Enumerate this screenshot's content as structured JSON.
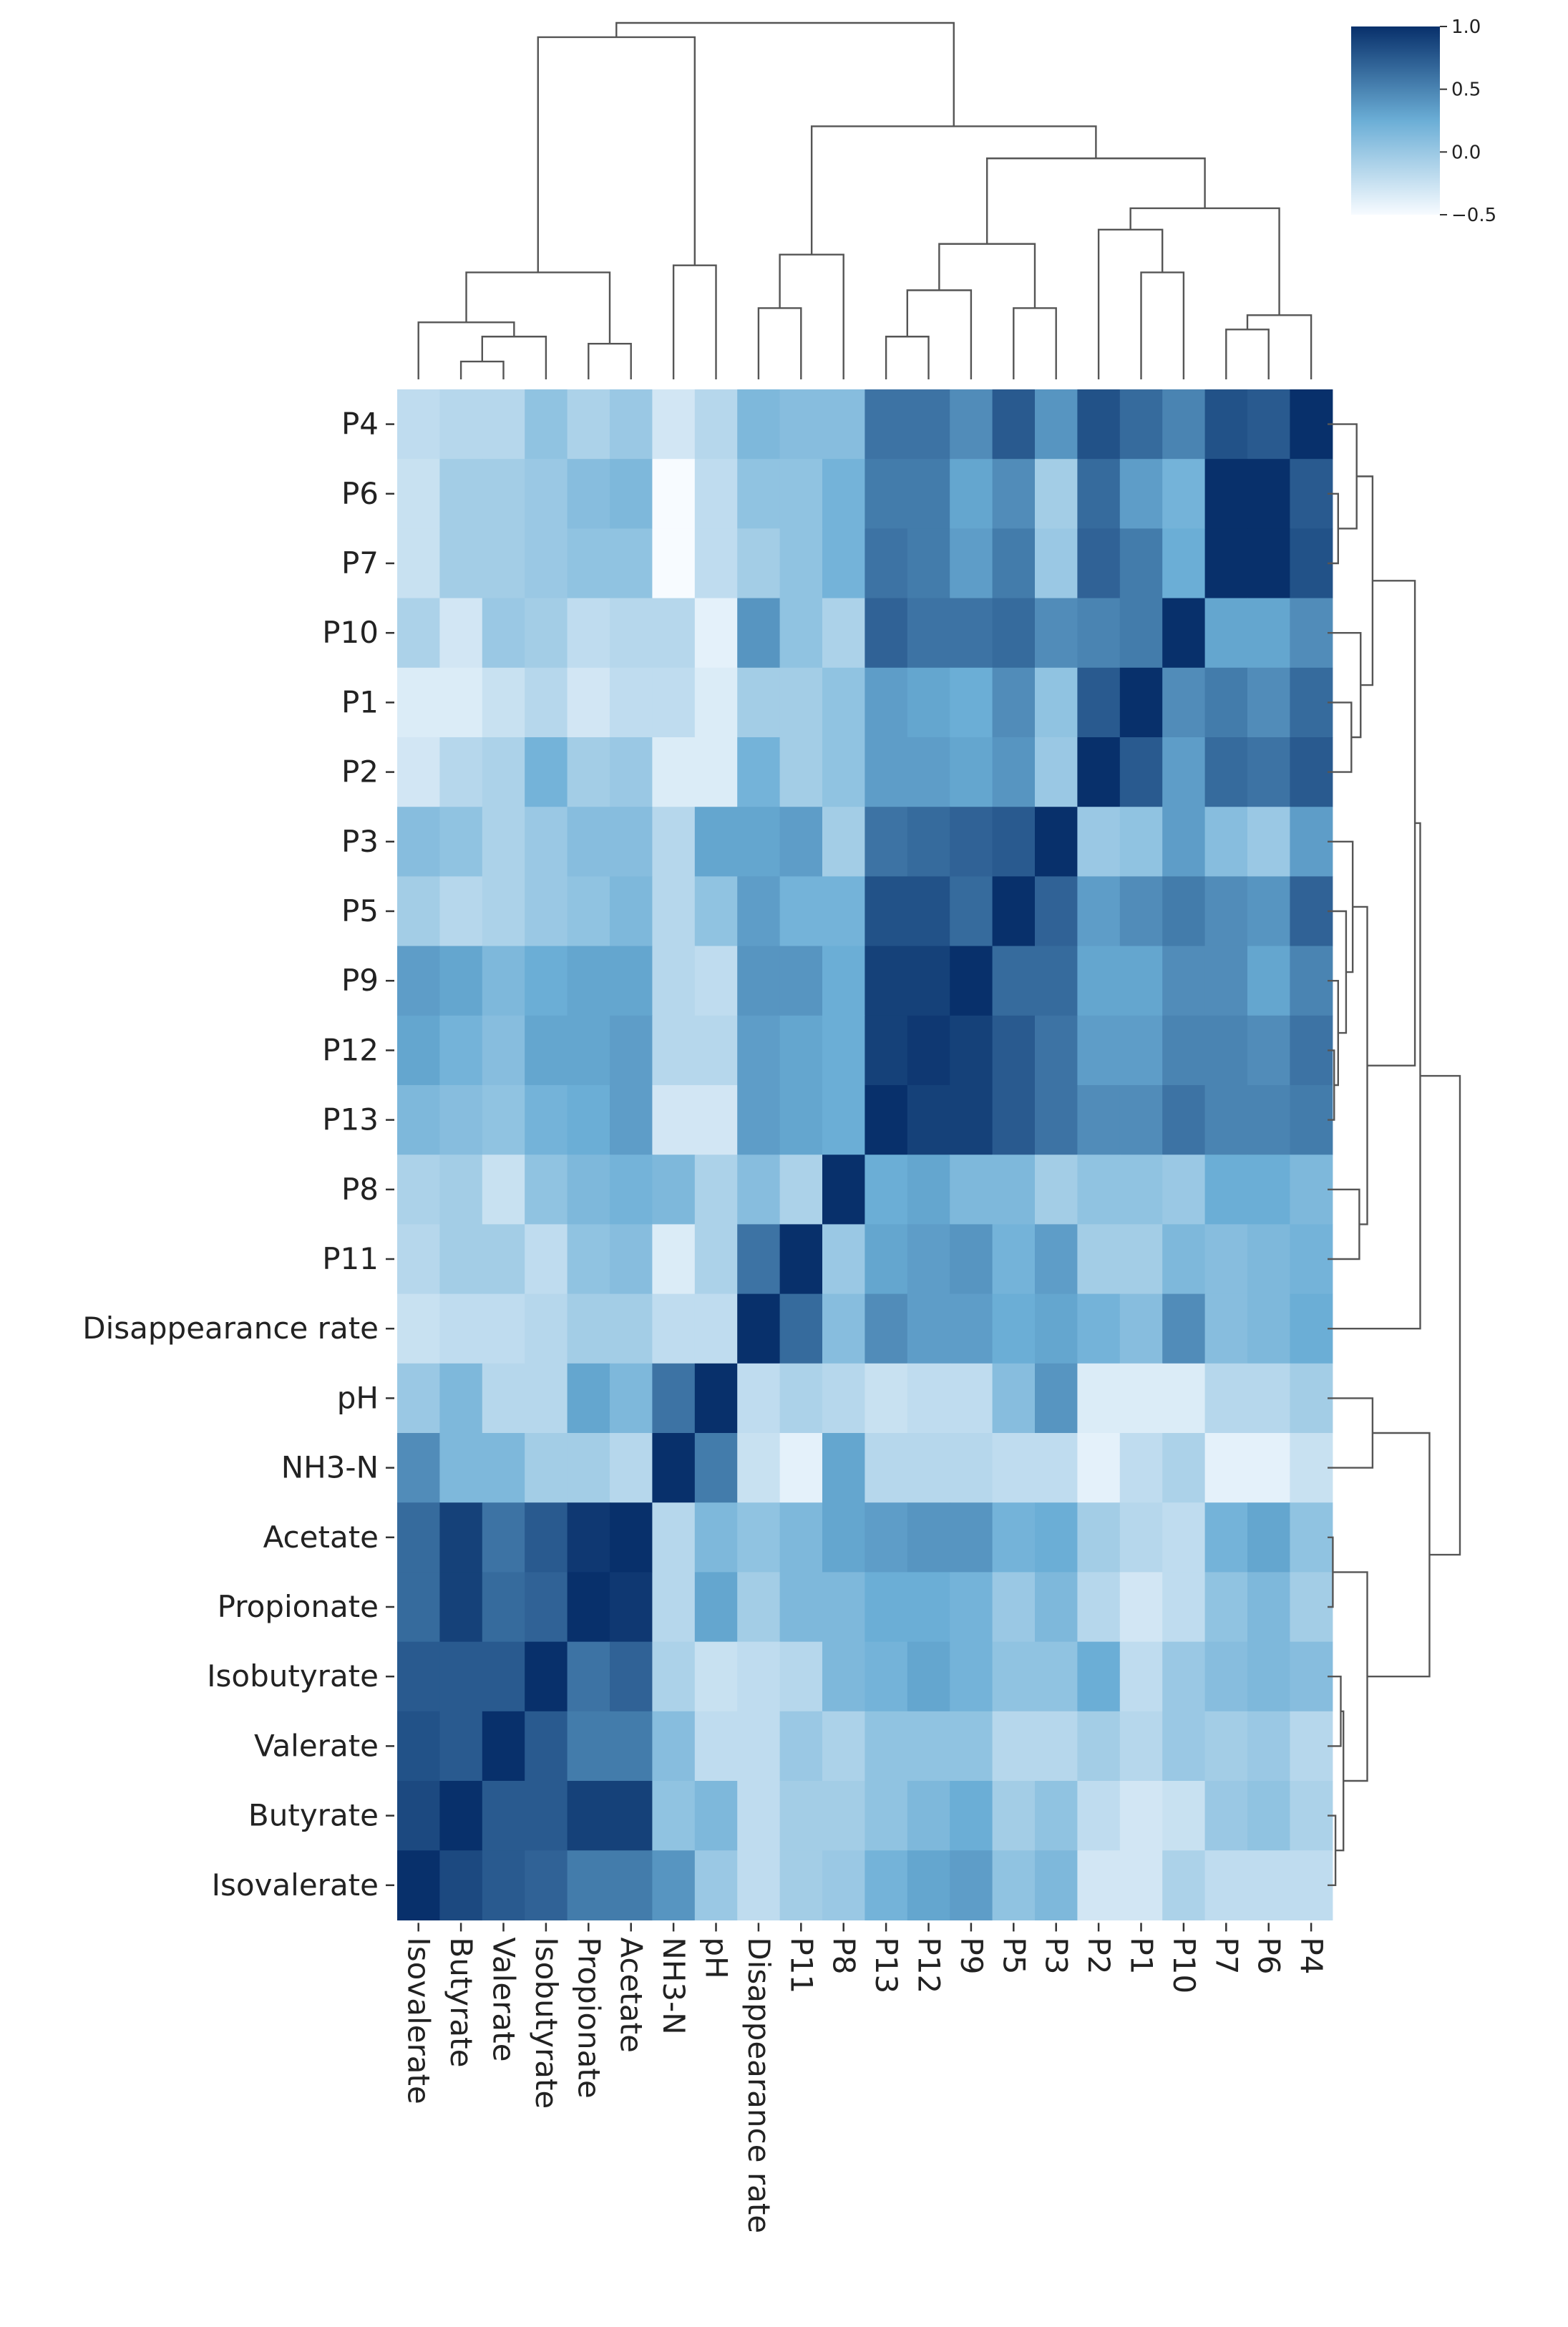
{
  "chart_data": {
    "type": "heatmap",
    "title": "",
    "xlabel": "",
    "ylabel": "",
    "colormap": "Blues",
    "colors": {
      "low": "#f7fbff",
      "mid": "#6baed6",
      "high": "#08306b"
    },
    "vmin": -0.5,
    "vmax": 1.0,
    "colorbar_ticks": [
      {
        "value": 1.0,
        "label": "1.0"
      },
      {
        "value": 0.5,
        "label": "0.5"
      },
      {
        "value": 0.0,
        "label": "0.0"
      },
      {
        "value": -0.5,
        "label": "−0.5"
      }
    ],
    "row_labels": [
      "P4",
      "P6",
      "P7",
      "P10",
      "P1",
      "P2",
      "P3",
      "P5",
      "P9",
      "P12",
      "P13",
      "P8",
      "P11",
      "Disappearance rate",
      "pH",
      "NH3-N",
      "Acetate",
      "Propionate",
      "Isobutyrate",
      "Valerate",
      "Butyrate",
      "Isovalerate"
    ],
    "col_labels": [
      "Isovalerate",
      "Butyrate",
      "Valerate",
      "Isobutyrate",
      "Propionate",
      "Acetate",
      "NH3-N",
      "pH",
      "Disappearance rate",
      "P11",
      "P8",
      "P13",
      "P12",
      "P9",
      "P5",
      "P3",
      "P2",
      "P1",
      "P10",
      "P7",
      "P6",
      "P4"
    ],
    "values": [
      [
        -0.2,
        -0.15,
        -0.15,
        0.05,
        -0.1,
        0.0,
        -0.3,
        -0.15,
        0.15,
        0.1,
        0.1,
        0.6,
        0.6,
        0.45,
        0.75,
        0.4,
        0.8,
        0.65,
        0.5,
        0.8,
        0.75,
        1.0
      ],
      [
        -0.25,
        -0.05,
        -0.05,
        0.0,
        0.1,
        0.15,
        -0.5,
        -0.2,
        0.05,
        0.05,
        0.2,
        0.55,
        0.55,
        0.3,
        0.45,
        -0.05,
        0.65,
        0.35,
        0.2,
        1.0,
        1.0,
        0.75
      ],
      [
        -0.25,
        -0.05,
        -0.05,
        0.0,
        0.05,
        0.05,
        -0.5,
        -0.2,
        -0.05,
        0.05,
        0.2,
        0.6,
        0.55,
        0.35,
        0.55,
        0.0,
        0.7,
        0.55,
        0.25,
        1.0,
        1.0,
        0.8
      ],
      [
        -0.1,
        -0.3,
        0.0,
        -0.05,
        -0.2,
        -0.15,
        -0.15,
        -0.4,
        0.4,
        0.05,
        -0.1,
        0.7,
        0.6,
        0.6,
        0.65,
        0.45,
        0.5,
        0.55,
        1.0,
        0.3,
        0.3,
        0.45
      ],
      [
        -0.35,
        -0.35,
        -0.25,
        -0.15,
        -0.3,
        -0.2,
        -0.2,
        -0.35,
        -0.05,
        -0.05,
        0.05,
        0.35,
        0.3,
        0.25,
        0.45,
        0.05,
        0.75,
        1.0,
        0.45,
        0.55,
        0.45,
        0.65
      ],
      [
        -0.3,
        -0.15,
        -0.1,
        0.2,
        -0.05,
        0.0,
        -0.35,
        -0.35,
        0.2,
        -0.05,
        0.05,
        0.35,
        0.35,
        0.3,
        0.4,
        0.0,
        1.0,
        0.75,
        0.35,
        0.65,
        0.6,
        0.75
      ],
      [
        0.1,
        0.05,
        -0.1,
        0.0,
        0.1,
        0.1,
        -0.15,
        0.3,
        0.3,
        0.35,
        -0.05,
        0.6,
        0.65,
        0.7,
        0.75,
        1.0,
        0.0,
        0.05,
        0.35,
        0.1,
        0.0,
        0.35
      ],
      [
        -0.05,
        -0.15,
        -0.1,
        0.0,
        0.05,
        0.15,
        -0.15,
        0.05,
        0.35,
        0.2,
        0.2,
        0.8,
        0.8,
        0.65,
        1.0,
        0.7,
        0.35,
        0.45,
        0.55,
        0.45,
        0.4,
        0.7
      ],
      [
        0.35,
        0.3,
        0.15,
        0.25,
        0.3,
        0.3,
        -0.15,
        -0.2,
        0.4,
        0.4,
        0.25,
        0.9,
        0.9,
        1.0,
        0.65,
        0.65,
        0.3,
        0.3,
        0.45,
        0.45,
        0.3,
        0.5
      ],
      [
        0.3,
        0.2,
        0.1,
        0.3,
        0.3,
        0.35,
        -0.15,
        -0.15,
        0.35,
        0.3,
        0.25,
        0.9,
        0.95,
        0.9,
        0.75,
        0.6,
        0.35,
        0.35,
        0.5,
        0.5,
        0.45,
        0.6
      ],
      [
        0.15,
        0.1,
        0.05,
        0.2,
        0.25,
        0.35,
        -0.3,
        -0.3,
        0.35,
        0.3,
        0.25,
        1.0,
        0.9,
        0.9,
        0.75,
        0.6,
        0.45,
        0.45,
        0.6,
        0.5,
        0.5,
        0.55
      ],
      [
        -0.1,
        -0.05,
        -0.25,
        0.05,
        0.15,
        0.2,
        0.15,
        -0.1,
        0.1,
        -0.1,
        1.0,
        0.25,
        0.3,
        0.15,
        0.15,
        -0.05,
        0.05,
        0.05,
        0.0,
        0.25,
        0.25,
        0.15
      ],
      [
        -0.15,
        -0.05,
        -0.05,
        -0.2,
        0.05,
        0.1,
        -0.35,
        -0.1,
        0.6,
        1.0,
        0.0,
        0.3,
        0.35,
        0.4,
        0.2,
        0.35,
        -0.05,
        -0.05,
        0.15,
        0.1,
        0.15,
        0.2
      ],
      [
        -0.25,
        -0.2,
        -0.2,
        -0.15,
        -0.05,
        -0.05,
        -0.2,
        -0.2,
        1.0,
        0.65,
        0.1,
        0.45,
        0.35,
        0.35,
        0.25,
        0.3,
        0.2,
        0.1,
        0.45,
        0.1,
        0.15,
        0.25
      ],
      [
        0.0,
        0.15,
        -0.15,
        -0.15,
        0.3,
        0.15,
        0.6,
        1.0,
        -0.2,
        -0.1,
        -0.15,
        -0.25,
        -0.2,
        -0.2,
        0.1,
        0.4,
        -0.35,
        -0.35,
        -0.35,
        -0.15,
        -0.15,
        -0.05
      ],
      [
        0.45,
        0.15,
        0.15,
        -0.05,
        -0.05,
        -0.15,
        1.0,
        0.55,
        -0.25,
        -0.4,
        0.3,
        -0.15,
        -0.15,
        -0.15,
        -0.2,
        -0.2,
        -0.4,
        -0.2,
        -0.1,
        -0.4,
        -0.4,
        -0.25
      ],
      [
        0.65,
        0.9,
        0.6,
        0.75,
        0.95,
        1.0,
        -0.15,
        0.15,
        0.05,
        0.15,
        0.3,
        0.35,
        0.4,
        0.4,
        0.2,
        0.25,
        -0.05,
        -0.15,
        -0.2,
        0.2,
        0.3,
        0.05
      ],
      [
        0.65,
        0.9,
        0.65,
        0.7,
        1.0,
        0.95,
        -0.15,
        0.3,
        -0.05,
        0.15,
        0.15,
        0.25,
        0.25,
        0.2,
        0.0,
        0.15,
        -0.15,
        -0.3,
        -0.2,
        0.05,
        0.15,
        -0.05
      ],
      [
        0.75,
        0.75,
        0.75,
        1.0,
        0.6,
        0.7,
        -0.1,
        -0.25,
        -0.2,
        -0.15,
        0.15,
        0.2,
        0.3,
        0.2,
        0.05,
        0.05,
        0.25,
        -0.2,
        0.0,
        0.1,
        0.15,
        0.1
      ],
      [
        0.8,
        0.75,
        1.0,
        0.75,
        0.55,
        0.55,
        0.1,
        -0.2,
        -0.2,
        0.0,
        -0.1,
        0.05,
        0.05,
        0.05,
        -0.15,
        -0.15,
        -0.05,
        -0.15,
        0.0,
        -0.05,
        0.0,
        -0.15
      ],
      [
        0.85,
        1.0,
        0.75,
        0.75,
        0.9,
        0.9,
        0.05,
        0.15,
        -0.2,
        -0.05,
        -0.05,
        0.05,
        0.15,
        0.25,
        -0.05,
        0.05,
        -0.2,
        -0.3,
        -0.25,
        0.0,
        0.05,
        -0.1
      ],
      [
        1.0,
        0.85,
        0.75,
        0.7,
        0.55,
        0.55,
        0.4,
        0.0,
        -0.2,
        -0.05,
        0.0,
        0.2,
        0.3,
        0.35,
        0.05,
        0.15,
        -0.3,
        -0.3,
        -0.1,
        -0.2,
        -0.2,
        -0.2
      ]
    ],
    "column_dendrogram": [
      [
        1,
        2,
        0.05
      ],
      [
        22,
        3,
        0.12
      ],
      [
        0,
        23,
        0.16
      ],
      [
        4,
        5,
        0.1
      ],
      [
        24,
        25,
        0.3
      ],
      [
        6,
        7,
        0.32
      ],
      [
        26,
        27,
        0.96
      ],
      [
        8,
        9,
        0.2
      ],
      [
        29,
        10,
        0.35
      ],
      [
        11,
        12,
        0.12
      ],
      [
        31,
        13,
        0.25
      ],
      [
        14,
        15,
        0.2
      ],
      [
        32,
        33,
        0.38
      ],
      [
        19,
        20,
        0.14
      ],
      [
        35,
        21,
        0.18
      ],
      [
        17,
        18,
        0.3
      ],
      [
        16,
        37,
        0.42
      ],
      [
        36,
        38,
        0.48
      ],
      [
        34,
        39,
        0.62
      ],
      [
        30,
        40,
        0.71
      ],
      [
        28,
        41,
        1.0
      ]
    ],
    "row_dendrogram": [
      [
        1,
        2,
        0.08
      ],
      [
        0,
        22,
        0.22
      ],
      [
        4,
        5,
        0.18
      ],
      [
        3,
        24,
        0.25
      ],
      [
        23,
        25,
        0.34
      ],
      [
        9,
        10,
        0.05
      ],
      [
        8,
        27,
        0.08
      ],
      [
        7,
        28,
        0.14
      ],
      [
        6,
        29,
        0.19
      ],
      [
        11,
        12,
        0.24
      ],
      [
        30,
        31,
        0.3
      ],
      [
        26,
        32,
        0.66
      ],
      [
        13,
        33,
        0.7
      ],
      [
        14,
        15,
        0.34
      ],
      [
        16,
        17,
        0.04
      ],
      [
        18,
        19,
        0.1
      ],
      [
        20,
        21,
        0.06
      ],
      [
        37,
        38,
        0.12
      ],
      [
        36,
        39,
        0.3
      ],
      [
        35,
        40,
        0.77
      ],
      [
        34,
        41,
        1.0
      ]
    ]
  }
}
